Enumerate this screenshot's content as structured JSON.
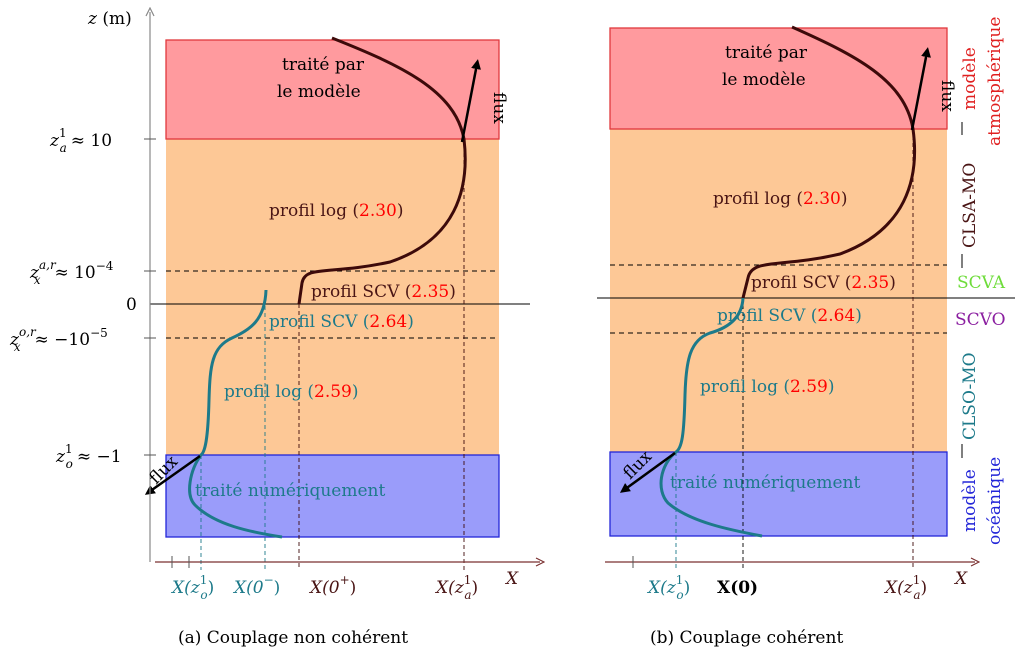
{
  "colors": {
    "atmo_zone": "#ff9a9e",
    "atmo_border": "#e0383d",
    "middle_zone": "#fdc896",
    "ocean_zone": "#9a9cfa",
    "ocean_border": "#2326d8",
    "atmo_curve": "#3d0a0a",
    "ocean_curve": "#1d7a8a",
    "ref_red": "#ff0000",
    "scva": "#6edc3a",
    "scvo": "#8b1fa0",
    "ocean_text": "#1d7a8a",
    "atmo_text": "#4a1515"
  },
  "left_panel": {
    "axis_z_label": "z",
    "axis_z_unit": "(m)",
    "ytick_za": {
      "sym": "z",
      "sup": "1",
      "sub": "a",
      "rel": "≈ 10"
    },
    "ytick_zxar": {
      "sym": "z",
      "sup": "a,r",
      "sub": "x",
      "rel": "≈ 10",
      "exp": "−4"
    },
    "ytick_zero": "0",
    "ytick_zxor": {
      "sym": "z",
      "sup": "o,r",
      "sub": "x",
      "rel": "≈ −10",
      "exp": "−5"
    },
    "ytick_zo": {
      "sym": "z",
      "sup": "1",
      "sub": "o",
      "rel": "≈ −1"
    },
    "atmo_text_line1": "traité par",
    "atmo_text_line2": "le modèle",
    "flux_label": "flux",
    "log_atmo": {
      "text": "profil log (",
      "ref": "2.30",
      "close": ")"
    },
    "scv_atmo": {
      "text": "profil SCV (",
      "ref": "2.35",
      "close": ")"
    },
    "scv_ocean": {
      "text": "profil SCV (",
      "ref": "2.64",
      "close": ")"
    },
    "log_ocean": {
      "text": "profil log (",
      "ref": "2.59",
      "close": ")"
    },
    "ocean_text": "traité numériquement",
    "x_label": "X",
    "xtick_zo": {
      "sym": "X(z",
      "sup": "1",
      "sub": "o",
      "close": ")"
    },
    "xtick_0m": {
      "sym": "X(0",
      "sup": "−",
      "close": ")"
    },
    "xtick_0p": {
      "sym": "X(0",
      "sup": "+",
      "close": ")"
    },
    "xtick_za": {
      "sym": "X(z",
      "sup": "1",
      "sub": "a",
      "close": ")"
    },
    "caption": "(a) Couplage non cohérent"
  },
  "right_panel": {
    "atmo_text_line1": "traité par",
    "atmo_text_line2": "le modèle",
    "flux_label": "flux",
    "log_atmo": {
      "text": "profil log (",
      "ref": "2.30",
      "close": ")"
    },
    "scv_atmo": {
      "text": "profil SCV (",
      "ref": "2.35",
      "close": ")"
    },
    "scv_ocean": {
      "text": "profil SCV (",
      "ref": "2.64",
      "close": ")"
    },
    "log_ocean": {
      "text": "profil log (",
      "ref": "2.59",
      "close": ")"
    },
    "ocean_text": "traité numériquement",
    "x_label": "X",
    "xtick_zo": {
      "sym": "X(z",
      "sup": "1",
      "sub": "o",
      "close": ")"
    },
    "xtick_0": "X(0)",
    "xtick_za": {
      "sym": "X(z",
      "sup": "1",
      "sub": "a",
      "close": ")"
    },
    "caption": "(b) Couplage cohérent"
  },
  "side_labels": {
    "modele_atmo_1": "modèle",
    "modele_atmo_2": "atmosphérique",
    "clsa": "CLSA-MO",
    "scva": "SCVA",
    "scvo": "SCVO",
    "clso": "CLSO-MO",
    "modele_ocean_1": "modèle",
    "modele_ocean_2": "océanique"
  }
}
